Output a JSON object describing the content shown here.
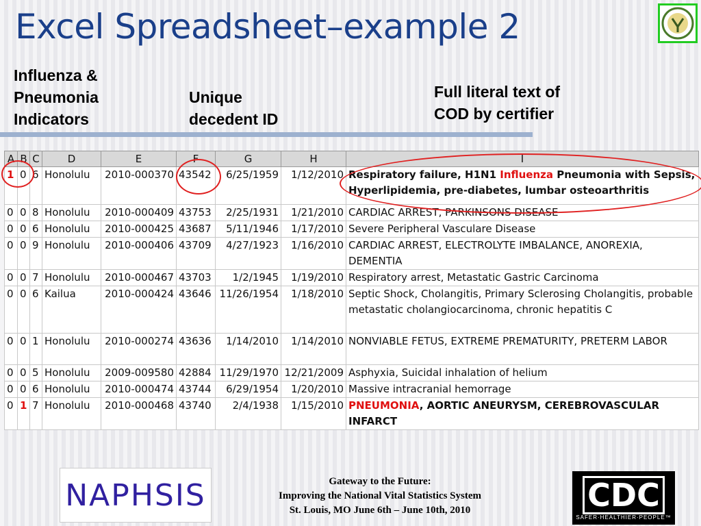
{
  "title": "Excel Spreadsheet–example 2",
  "labels": {
    "influenza": [
      "Influenza &",
      "Pneumonia",
      "Indicators"
    ],
    "decedent": [
      "Unique",
      "decedent ID"
    ],
    "literal": [
      "Full literal text of",
      "COD by certifier"
    ]
  },
  "columns": [
    "A",
    "B",
    "C",
    "D",
    "E",
    "F",
    "G",
    "H",
    "I"
  ],
  "rows": [
    {
      "a": "1",
      "b": "0",
      "c": "6",
      "d": "Honolulu",
      "e": "2010-000370",
      "f": "43542",
      "g": "6/25/1959",
      "h": "1/12/2010",
      "i": [
        {
          "t": "Respiratory failure, H1N1 ",
          "s": "b"
        },
        {
          "t": "Influenza",
          "s": "red"
        },
        {
          "t": " Pneumonia with Sepsis, Hyperlipidemia, pre-diabetes, lumbar osteoarthritis",
          "s": "b"
        }
      ],
      "red": "a"
    },
    {
      "a": "0",
      "b": "0",
      "c": "8",
      "d": "Honolulu",
      "e": "2010-000409",
      "f": "43753",
      "g": "2/25/1931",
      "h": "1/21/2010",
      "i": [
        {
          "t": "CARDIAC ARREST, PARKINSONS DISEASE",
          "s": ""
        }
      ]
    },
    {
      "a": "0",
      "b": "0",
      "c": "6",
      "d": "Honolulu",
      "e": "2010-000425",
      "f": "43687",
      "g": "5/11/1946",
      "h": "1/17/2010",
      "i": [
        {
          "t": "Severe Peripheral Vasculare Disease",
          "s": ""
        }
      ]
    },
    {
      "a": "0",
      "b": "0",
      "c": "9",
      "d": "Honolulu",
      "e": "2010-000406",
      "f": "43709",
      "g": "4/27/1923",
      "h": "1/16/2010",
      "i": [
        {
          "t": "CARDIAC ARREST, ELECTROLYTE IMBALANCE, ANOREXIA, DEMENTIA",
          "s": ""
        }
      ]
    },
    {
      "a": "0",
      "b": "0",
      "c": "7",
      "d": "Honolulu",
      "e": "2010-000467",
      "f": "43703",
      "g": "1/2/1945",
      "h": "1/19/2010",
      "i": [
        {
          "t": "Respiratory arrest, Metastatic Gastric Carcinoma",
          "s": ""
        }
      ]
    },
    {
      "a": "0",
      "b": "0",
      "c": "6",
      "d": "Kailua",
      "e": "2010-000424",
      "f": "43646",
      "g": "11/26/1954",
      "h": "1/18/2010",
      "i": [
        {
          "t": "Septic Shock, Cholangitis, Primary Sclerosing Cholangitis, probable metastatic cholangiocarcinoma,  chronic hepatitis C",
          "s": ""
        }
      ]
    },
    {
      "a": "0",
      "b": "0",
      "c": "1",
      "d": "Honolulu",
      "e": "2010-000274",
      "f": "43636",
      "g": "1/14/2010",
      "h": "1/14/2010",
      "i": [
        {
          "t": "NONVIABLE FETUS, EXTREME PREMATURITY, PRETERM LABOR",
          "s": ""
        }
      ]
    },
    {
      "a": "0",
      "b": "0",
      "c": "5",
      "d": "Honolulu",
      "e": "2009-009580",
      "f": "42884",
      "g": "11/29/1970",
      "h": "12/21/2009",
      "i": [
        {
          "t": "Asphyxia, Suicidal inhalation of helium",
          "s": ""
        }
      ]
    },
    {
      "a": "0",
      "b": "0",
      "c": "6",
      "d": "Honolulu",
      "e": "2010-000474",
      "f": "43744",
      "g": "6/29/1954",
      "h": "1/20/2010",
      "i": [
        {
          "t": "Massive intracranial hemorrage",
          "s": ""
        }
      ]
    },
    {
      "a": "0",
      "b": "1",
      "c": "7",
      "d": "Honolulu",
      "e": "2010-000468",
      "f": "43740",
      "g": "2/4/1938",
      "h": "1/15/2010",
      "i": [
        {
          "t": "PNEUMONIA",
          "s": "red"
        },
        {
          "t": ", AORTIC ANEURYSM, CEREBROVASCULAR INFARCT",
          "s": "b"
        }
      ],
      "red": "b"
    }
  ],
  "footer": {
    "line1": "Gateway to the Future:",
    "line2": "Improving the National Vital Statistics System",
    "line3": "St. Louis, MO      June 6th – June 10th, 2010"
  },
  "logos": {
    "naphsis": "NAPHSIS",
    "cdc": "CDC",
    "cdc_tagline": "SAFER·HEALTHIER·PEOPLE™"
  },
  "colors": {
    "title": "#1a3f8a",
    "highlight": "#e01010",
    "logo_border": "#22cc22"
  }
}
